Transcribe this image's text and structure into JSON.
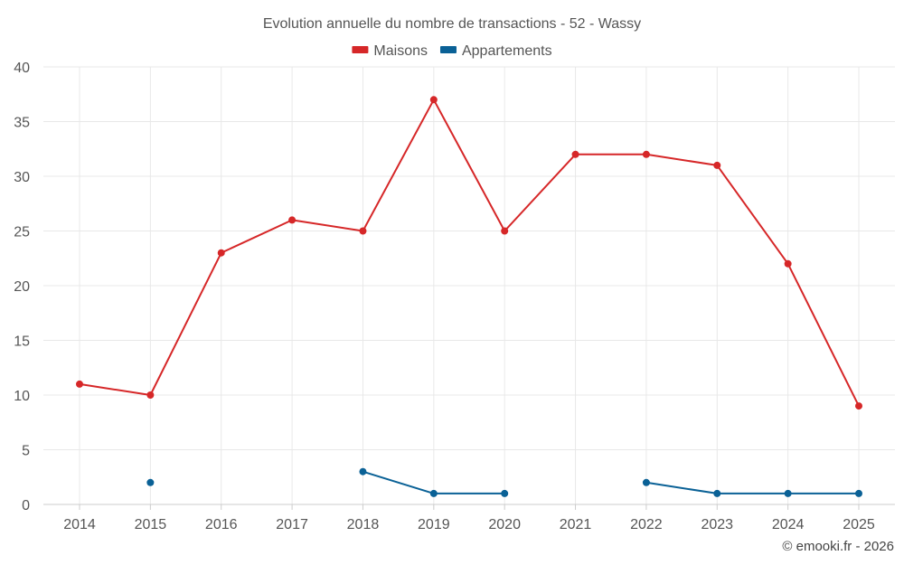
{
  "chart_data": {
    "type": "line",
    "title": "Evolution annuelle du nombre de transactions - 52 - Wassy",
    "categories": [
      "2014",
      "2015",
      "2016",
      "2017",
      "2018",
      "2019",
      "2020",
      "2021",
      "2022",
      "2023",
      "2024",
      "2025"
    ],
    "series": [
      {
        "name": "Maisons",
        "color": "#d62728",
        "values": [
          11,
          10,
          23,
          26,
          25,
          37,
          25,
          32,
          32,
          31,
          22,
          9
        ]
      },
      {
        "name": "Appartements",
        "color": "#0a6196",
        "values": [
          null,
          2,
          null,
          null,
          3,
          1,
          1,
          null,
          2,
          1,
          1,
          1
        ]
      }
    ],
    "ylim": [
      0,
      40
    ],
    "yticks": [
      0,
      5,
      10,
      15,
      20,
      25,
      30,
      35,
      40
    ],
    "xlabel": "",
    "ylabel": "",
    "grid": true,
    "legend_position": "top-center"
  },
  "credit": "© emooki.fr - 2026"
}
